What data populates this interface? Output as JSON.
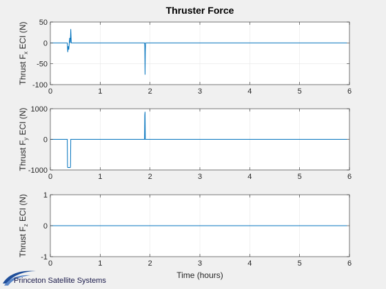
{
  "chart_data": [
    {
      "type": "line",
      "title": "Thruster Force",
      "ylabel": "Thrust F",
      "ylabel_sub": "x",
      "ylabel_suffix": " ECI (N)",
      "xlabel": "",
      "xlim": [
        0,
        6
      ],
      "ylim": [
        -100,
        50
      ],
      "xticks": [
        "0",
        "1",
        "2",
        "3",
        "4",
        "5",
        "6"
      ],
      "yticks": [
        {
          "value": 50,
          "label": "50"
        },
        {
          "value": 0,
          "label": "0"
        },
        {
          "value": -50,
          "label": "-50"
        },
        {
          "value": -100,
          "label": "-100"
        }
      ],
      "grid": true,
      "series": [
        {
          "color": "#0072bd",
          "x": [
            0,
            0.34,
            0.35,
            0.36,
            0.37,
            0.38,
            0.39,
            0.4,
            0.41,
            0.42,
            1.89,
            1.895,
            1.9,
            1.905,
            1.91,
            5.95
          ],
          "y": [
            0,
            0,
            -22,
            -8,
            -16,
            0,
            12,
            0,
            33,
            0,
            0,
            -8,
            -76,
            -20,
            0,
            0
          ]
        }
      ]
    },
    {
      "type": "line",
      "title": "",
      "ylabel": "Thrust F",
      "ylabel_sub": "y",
      "ylabel_suffix": " ECI (N)",
      "xlabel": "",
      "xlim": [
        0,
        6
      ],
      "ylim": [
        -1000,
        1000
      ],
      "xticks": [
        "0",
        "1",
        "2",
        "3",
        "4",
        "5",
        "6"
      ],
      "yticks": [
        {
          "value": 1000,
          "label": "1000"
        },
        {
          "value": 0,
          "label": "0"
        },
        {
          "value": -1000,
          "label": "-1000"
        }
      ],
      "grid": true,
      "series": [
        {
          "color": "#0072bd",
          "x": [
            0,
            0.34,
            0.345,
            0.35,
            0.4,
            0.405,
            0.41,
            1.89,
            1.895,
            1.9,
            1.905,
            5.95
          ],
          "y": [
            0,
            0,
            -880,
            -920,
            -920,
            -880,
            0,
            0,
            800,
            900,
            0,
            0
          ]
        }
      ]
    },
    {
      "type": "line",
      "title": "",
      "ylabel": "Thrust F",
      "ylabel_sub": "z",
      "ylabel_suffix": " ECI (N)",
      "xlabel": "Time (hours)",
      "xlim": [
        0,
        6
      ],
      "ylim": [
        -1,
        1
      ],
      "xticks": [
        "0",
        "1",
        "2",
        "3",
        "4",
        "5",
        "6"
      ],
      "yticks": [
        {
          "value": 1,
          "label": "1"
        },
        {
          "value": 0,
          "label": "0"
        },
        {
          "value": -1,
          "label": "-1"
        }
      ],
      "grid": true,
      "series": [
        {
          "color": "#0072bd",
          "x": [
            0,
            5.95
          ],
          "y": [
            0,
            0
          ]
        }
      ]
    }
  ],
  "logo": {
    "text": "Princeton Satellite Systems"
  },
  "colors": {
    "background": "#f0f0f0",
    "axes": "#ffffff",
    "grid": "#e6e6e6",
    "line": "#0072bd"
  }
}
